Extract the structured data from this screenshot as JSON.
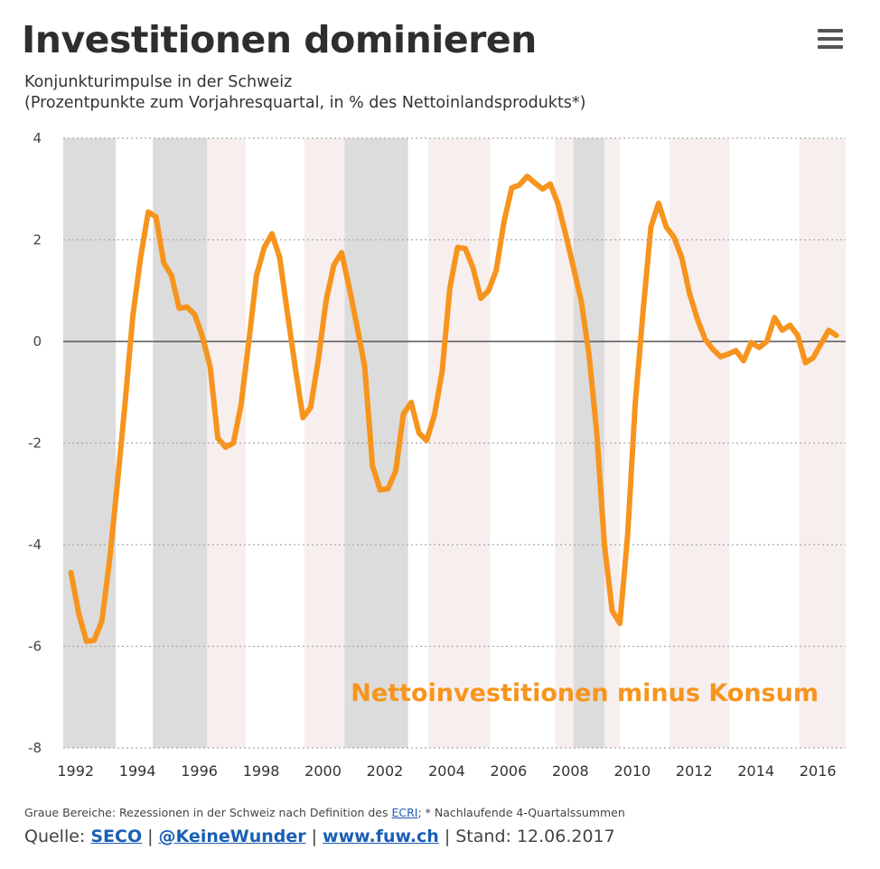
{
  "header": {
    "title": "Investitionen dominieren",
    "subtitle_line1": "Konjunkturimpulse in der Schweiz",
    "subtitle_line2": "(Prozentpunkte zum Vorjahresquartal, in % des Nettoinlandsprodukts*)",
    "menu_icon": "hamburger-menu-icon"
  },
  "footer": {
    "footnote_prefix": "Graue Bereiche: Rezessionen in der Schweiz nach Definition des ",
    "footnote_link": "ECRI",
    "footnote_suffix": "; * Nachlaufende 4-Quartalssummen",
    "source_label": "Quelle: ",
    "source_link1": "SECO",
    "source_link2": "@KeineWunder",
    "source_link3": "www.fuw.ch",
    "separator": "|",
    "stand": "Stand: 12.06.2017"
  },
  "colors": {
    "line": "#f7941d",
    "recession": "#dcdcdc",
    "band": "#f7eeee",
    "grid": "#aaaaaa",
    "zero_line": "#555555"
  },
  "chart_data": {
    "type": "line",
    "title": "Investitionen dominieren",
    "xlabel": "",
    "ylabel": "",
    "xlim": [
      1991.6,
      2016.9
    ],
    "ylim": [
      -8,
      4
    ],
    "y_ticks": [
      4,
      2,
      0,
      -2,
      -4,
      -6,
      -8
    ],
    "x_ticks": [
      1992,
      1994,
      1996,
      1998,
      2000,
      2002,
      2004,
      2006,
      2008,
      2010,
      2012,
      2014,
      2016
    ],
    "x_tick_labels": [
      "1992",
      "1994",
      "1996",
      "1998",
      "2000",
      "2002",
      "2004",
      "2006",
      "2008",
      "2010",
      "2012",
      "2014",
      "2016"
    ],
    "grid": "horizontal dotted",
    "recessions": [
      [
        1991.6,
        1993.3
      ],
      [
        1994.5,
        1996.25
      ],
      [
        2000.7,
        2002.75
      ],
      [
        2008.1,
        2009.1
      ]
    ],
    "light_bands": [
      [
        1996.25,
        1997.5
      ],
      [
        1999.4,
        2000.7
      ],
      [
        2003.4,
        2005.4
      ],
      [
        2007.5,
        2008.1
      ],
      [
        2009.1,
        2009.6
      ],
      [
        2011.2,
        2013.15
      ],
      [
        2015.4,
        2016.9
      ]
    ],
    "series": [
      {
        "name": "Nettoinvestitionen minus Konsum",
        "x": [
          1991.85,
          1992.1,
          1992.35,
          1992.6,
          1992.85,
          1993.1,
          1993.35,
          1993.6,
          1993.85,
          1994.1,
          1994.35,
          1994.6,
          1994.85,
          1995.1,
          1995.35,
          1995.6,
          1995.85,
          1996.1,
          1996.35,
          1996.6,
          1996.85,
          1997.1,
          1997.35,
          1997.6,
          1997.85,
          1998.1,
          1998.35,
          1998.6,
          1998.85,
          1999.1,
          1999.35,
          1999.6,
          1999.85,
          2000.1,
          2000.35,
          2000.6,
          2000.85,
          2001.1,
          2001.35,
          2001.6,
          2001.85,
          2002.1,
          2002.35,
          2002.6,
          2002.85,
          2003.1,
          2003.35,
          2003.6,
          2003.85,
          2004.1,
          2004.35,
          2004.6,
          2004.85,
          2005.1,
          2005.35,
          2005.6,
          2005.85,
          2006.1,
          2006.35,
          2006.6,
          2006.85,
          2007.1,
          2007.35,
          2007.6,
          2007.85,
          2008.1,
          2008.35,
          2008.6,
          2008.85,
          2009.1,
          2009.35,
          2009.6,
          2009.85,
          2010.1,
          2010.35,
          2010.6,
          2010.85,
          2011.1,
          2011.35,
          2011.6,
          2011.85,
          2012.1,
          2012.35,
          2012.6,
          2012.85,
          2013.1,
          2013.35,
          2013.6,
          2013.85,
          2014.1,
          2014.35,
          2014.6,
          2014.85,
          2015.1,
          2015.35,
          2015.6,
          2015.85,
          2016.1,
          2016.35,
          2016.6
        ],
        "y": [
          -4.55,
          -5.35,
          -5.9,
          -5.88,
          -5.5,
          -4.3,
          -2.8,
          -1.2,
          0.5,
          1.65,
          2.55,
          2.45,
          1.55,
          1.3,
          0.65,
          0.68,
          0.53,
          0.1,
          -0.5,
          -1.9,
          -2.08,
          -2.0,
          -1.25,
          0.0,
          1.3,
          1.85,
          2.12,
          1.65,
          0.55,
          -0.5,
          -1.5,
          -1.3,
          -0.35,
          0.8,
          1.5,
          1.75,
          1.05,
          0.3,
          -0.5,
          -2.45,
          -2.92,
          -2.9,
          -2.55,
          -1.43,
          -1.2,
          -1.8,
          -1.95,
          -1.45,
          -0.6,
          1.05,
          1.85,
          1.83,
          1.45,
          0.85,
          1.0,
          1.4,
          2.35,
          3.02,
          3.08,
          3.25,
          3.12,
          3.0,
          3.1,
          2.7,
          2.1,
          1.45,
          0.8,
          -0.25,
          -1.8,
          -4.0,
          -5.3,
          -5.55,
          -3.8,
          -1.2,
          0.6,
          2.25,
          2.72,
          2.25,
          2.05,
          1.65,
          0.95,
          0.45,
          0.05,
          -0.15,
          -0.3,
          -0.25,
          -0.18,
          -0.38,
          -0.02,
          -0.12,
          0.0,
          0.47,
          0.22,
          0.32,
          0.12,
          -0.42,
          -0.32,
          -0.05,
          0.22,
          0.12
        ]
      }
    ],
    "annotations": [
      "Nettoinvestitionen minus Konsum"
    ]
  }
}
